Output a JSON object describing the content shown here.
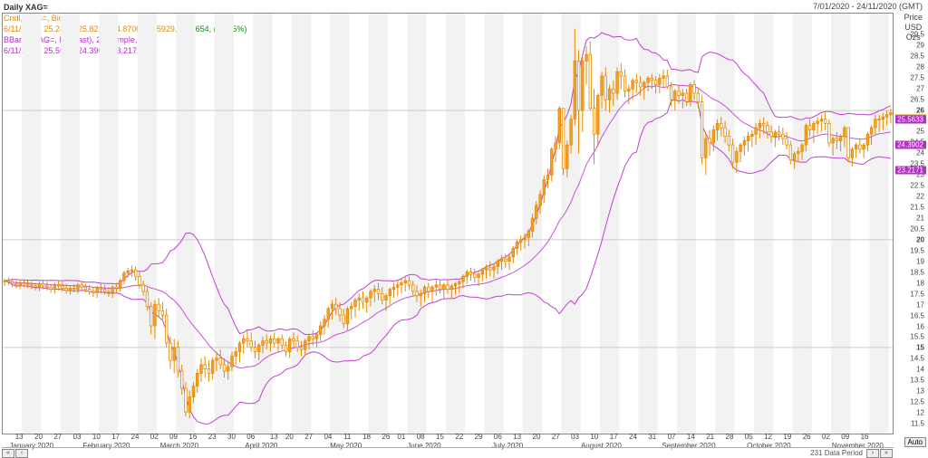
{
  "title": "Daily XAG=",
  "date_range": "7/01/2020 - 24/11/2020 (GMT)",
  "legend": {
    "candle": {
      "text": "Cndl, XAG=, Bid",
      "color": "#e58a00"
    },
    "candle_vals": {
      "text": "6/11/2020, 25.2400, 25.8211, 24.8700, 25.5929, +0.2654, (+1.05%)",
      "color": "#e58a00",
      "change_color_pos": "#0a8a0a"
    },
    "bband": {
      "text": "BBand, XAG=, Bid(Last), 20, Simple, 2.0",
      "color": "#b030c0"
    },
    "bband_vals": {
      "text": "6/11/2020, 25.5633, 24.3902, 23.2171",
      "color": "#b030c0"
    }
  },
  "y_axis": {
    "title_lines": [
      "Price",
      "USD",
      "Ozs"
    ],
    "min": 11,
    "max": 30.5,
    "ticks_major": [
      15,
      20,
      26
    ],
    "ticks_minor": [
      11.5,
      12,
      12.5,
      13,
      13.5,
      14,
      14.5,
      15.5,
      16,
      16.5,
      17,
      17.5,
      18,
      18.5,
      19,
      19.5,
      20.5,
      21,
      21.5,
      22,
      22.5,
      23,
      23.5,
      24,
      24.5,
      25,
      25.5,
      26.5,
      27,
      27.5,
      28,
      28.5,
      29,
      29.5
    ],
    "bold_ticks": [
      15,
      20,
      26
    ]
  },
  "markers": [
    {
      "value": 25.5929,
      "label": "25.5929",
      "bg": "#e58a00"
    },
    {
      "value": 25.5633,
      "label": "25.5633",
      "bg": "#b030c0"
    },
    {
      "value": 24.3902,
      "label": "24.3902",
      "bg": "#b030c0"
    },
    {
      "value": 23.2171,
      "label": "23.2171",
      "bg": "#b030c0"
    }
  ],
  "auto_label": "Auto",
  "nav": {
    "rewind": "«",
    "back": "‹",
    "status": "231 Data Period",
    "fwd": "›",
    "ffwd": "»"
  },
  "x_axis": {
    "start_index": 0,
    "count": 231,
    "months": [
      {
        "label": "January 2020",
        "day_start": 0
      },
      {
        "label": "February 2020",
        "day_start": 19
      },
      {
        "label": "March 2020",
        "day_start": 39
      },
      {
        "label": "April 2020",
        "day_start": 61
      },
      {
        "label": "May 2020",
        "day_start": 83
      },
      {
        "label": "June 2020",
        "day_start": 103
      },
      {
        "label": "July 2020",
        "day_start": 125
      },
      {
        "label": "August 2020",
        "day_start": 148
      },
      {
        "label": "September 2020",
        "day_start": 169
      },
      {
        "label": "October 2020",
        "day_start": 191
      },
      {
        "label": "November 2020",
        "day_start": 213
      }
    ],
    "ticks": [
      {
        "idx": 4,
        "label": "13"
      },
      {
        "idx": 9,
        "label": "20"
      },
      {
        "idx": 14,
        "label": "27"
      },
      {
        "idx": 19,
        "label": "03"
      },
      {
        "idx": 24,
        "label": "10"
      },
      {
        "idx": 29,
        "label": "17"
      },
      {
        "idx": 34,
        "label": "24"
      },
      {
        "idx": 39,
        "label": "02"
      },
      {
        "idx": 44,
        "label": "09"
      },
      {
        "idx": 49,
        "label": "16"
      },
      {
        "idx": 54,
        "label": "23"
      },
      {
        "idx": 59,
        "label": "30"
      },
      {
        "idx": 64,
        "label": "06"
      },
      {
        "idx": 70,
        "label": "13"
      },
      {
        "idx": 74,
        "label": "20"
      },
      {
        "idx": 79,
        "label": "27"
      },
      {
        "idx": 84,
        "label": "04"
      },
      {
        "idx": 89,
        "label": "11"
      },
      {
        "idx": 94,
        "label": "18"
      },
      {
        "idx": 99,
        "label": "26"
      },
      {
        "idx": 103,
        "label": "01"
      },
      {
        "idx": 108,
        "label": "08"
      },
      {
        "idx": 113,
        "label": "15"
      },
      {
        "idx": 118,
        "label": "22"
      },
      {
        "idx": 123,
        "label": "29"
      },
      {
        "idx": 128,
        "label": "06"
      },
      {
        "idx": 133,
        "label": "13"
      },
      {
        "idx": 138,
        "label": "20"
      },
      {
        "idx": 143,
        "label": "27"
      },
      {
        "idx": 148,
        "label": "03"
      },
      {
        "idx": 153,
        "label": "10"
      },
      {
        "idx": 158,
        "label": "17"
      },
      {
        "idx": 163,
        "label": "24"
      },
      {
        "idx": 168,
        "label": "31"
      },
      {
        "idx": 173,
        "label": "07"
      },
      {
        "idx": 178,
        "label": "14"
      },
      {
        "idx": 183,
        "label": "21"
      },
      {
        "idx": 188,
        "label": "28"
      },
      {
        "idx": 193,
        "label": "05"
      },
      {
        "idx": 198,
        "label": "12"
      },
      {
        "idx": 203,
        "label": "19"
      },
      {
        "idx": 208,
        "label": "26"
      },
      {
        "idx": 213,
        "label": "02"
      },
      {
        "idx": 218,
        "label": "09"
      },
      {
        "idx": 223,
        "label": "16"
      }
    ]
  },
  "style": {
    "candle_up": "#f2a02a",
    "candle_down": "#f2a02a",
    "candle_wick": "#e58a00",
    "candle_fill_down": "#ffffff",
    "bband_color": "#c040d0",
    "bband_mid_color": "#c040d0",
    "stripe_color": "#f2f2f2",
    "grid_major": "#cccccc",
    "background": "#ffffff",
    "candle_width": 0.6
  },
  "candles": [
    [
      18.05,
      18.2,
      17.85,
      18.1
    ],
    [
      18.1,
      18.25,
      17.9,
      18.05
    ],
    [
      18.05,
      18.2,
      17.8,
      17.95
    ],
    [
      17.95,
      18.1,
      17.75,
      17.9
    ],
    [
      17.9,
      18.1,
      17.7,
      18.0
    ],
    [
      18.0,
      18.15,
      17.8,
      17.95
    ],
    [
      17.95,
      18.1,
      17.75,
      17.9
    ],
    [
      17.9,
      18.05,
      17.7,
      17.85
    ],
    [
      17.85,
      18.0,
      17.65,
      17.8
    ],
    [
      17.8,
      18.05,
      17.6,
      17.95
    ],
    [
      17.95,
      18.1,
      17.7,
      17.85
    ],
    [
      17.85,
      18.05,
      17.65,
      17.8
    ],
    [
      17.8,
      17.95,
      17.55,
      17.7
    ],
    [
      17.7,
      18.0,
      17.5,
      17.9
    ],
    [
      17.9,
      18.1,
      17.65,
      17.85
    ],
    [
      17.85,
      18.05,
      17.6,
      17.75
    ],
    [
      17.75,
      17.95,
      17.5,
      17.65
    ],
    [
      17.65,
      17.85,
      17.45,
      17.75
    ],
    [
      17.75,
      17.95,
      17.55,
      17.7
    ],
    [
      17.7,
      18.0,
      17.5,
      17.9
    ],
    [
      17.9,
      18.05,
      17.65,
      17.8
    ],
    [
      17.8,
      17.95,
      17.55,
      17.7
    ],
    [
      17.7,
      17.9,
      17.45,
      17.6
    ],
    [
      17.6,
      17.8,
      17.35,
      17.55
    ],
    [
      17.55,
      17.85,
      17.3,
      17.75
    ],
    [
      17.75,
      17.95,
      17.5,
      17.7
    ],
    [
      17.7,
      17.9,
      17.45,
      17.6
    ],
    [
      17.6,
      17.8,
      17.35,
      17.55
    ],
    [
      17.55,
      17.9,
      17.3,
      17.8
    ],
    [
      17.8,
      18.0,
      17.55,
      17.75
    ],
    [
      17.75,
      18.2,
      17.6,
      18.1
    ],
    [
      18.1,
      18.55,
      17.95,
      18.45
    ],
    [
      18.45,
      18.7,
      18.25,
      18.55
    ],
    [
      18.55,
      18.8,
      18.3,
      18.6
    ],
    [
      18.6,
      18.75,
      18.1,
      18.3
    ],
    [
      18.3,
      18.5,
      17.75,
      17.9
    ],
    [
      17.9,
      18.1,
      17.4,
      17.6
    ],
    [
      17.6,
      17.8,
      16.7,
      16.9
    ],
    [
      16.9,
      17.1,
      15.6,
      16.0
    ],
    [
      16.0,
      17.2,
      15.4,
      17.0
    ],
    [
      17.0,
      17.3,
      16.4,
      16.7
    ],
    [
      16.7,
      17.1,
      16.2,
      16.5
    ],
    [
      16.5,
      16.8,
      15.0,
      15.2
    ],
    [
      15.2,
      15.5,
      14.0,
      14.4
    ],
    [
      14.4,
      15.4,
      13.8,
      15.0
    ],
    [
      15.0,
      15.3,
      13.6,
      13.9
    ],
    [
      13.9,
      14.2,
      12.8,
      13.1
    ],
    [
      13.1,
      13.4,
      11.8,
      12.0
    ],
    [
      12.0,
      13.0,
      11.7,
      12.7
    ],
    [
      12.7,
      13.4,
      12.4,
      13.2
    ],
    [
      13.2,
      14.0,
      12.9,
      13.8
    ],
    [
      13.8,
      14.5,
      13.4,
      14.2
    ],
    [
      14.2,
      14.6,
      13.6,
      14.0
    ],
    [
      14.0,
      14.4,
      13.4,
      13.8
    ],
    [
      13.8,
      14.55,
      13.5,
      14.4
    ],
    [
      14.4,
      14.8,
      13.9,
      14.5
    ],
    [
      14.5,
      14.9,
      14.0,
      14.2
    ],
    [
      14.2,
      14.5,
      13.6,
      13.9
    ],
    [
      13.9,
      14.3,
      13.5,
      14.1
    ],
    [
      14.1,
      14.8,
      13.9,
      14.6
    ],
    [
      14.6,
      15.0,
      14.2,
      14.8
    ],
    [
      14.8,
      15.3,
      14.3,
      15.2
    ],
    [
      15.2,
      15.6,
      14.7,
      15.4
    ],
    [
      15.4,
      15.8,
      15.0,
      15.3
    ],
    [
      15.3,
      15.7,
      14.8,
      15.0
    ],
    [
      15.0,
      15.3,
      14.5,
      14.8
    ],
    [
      14.8,
      15.2,
      14.4,
      15.1
    ],
    [
      15.1,
      15.5,
      14.7,
      15.3
    ],
    [
      15.3,
      15.6,
      14.9,
      15.2
    ],
    [
      15.2,
      15.55,
      14.8,
      15.4
    ],
    [
      15.4,
      15.7,
      15.0,
      15.2
    ],
    [
      15.2,
      15.5,
      14.8,
      15.4
    ],
    [
      15.4,
      15.6,
      14.9,
      15.1
    ],
    [
      15.1,
      15.3,
      14.6,
      14.8
    ],
    [
      14.8,
      15.5,
      14.5,
      15.4
    ],
    [
      15.4,
      15.7,
      15.0,
      15.3
    ],
    [
      15.3,
      15.55,
      14.8,
      15.0
    ],
    [
      15.0,
      15.3,
      14.6,
      14.9
    ],
    [
      14.9,
      15.4,
      14.6,
      15.3
    ],
    [
      15.3,
      15.6,
      14.9,
      15.5
    ],
    [
      15.5,
      15.8,
      15.1,
      15.4
    ],
    [
      15.4,
      15.7,
      15.0,
      15.6
    ],
    [
      15.6,
      16.2,
      15.3,
      16.0
    ],
    [
      16.0,
      16.5,
      15.6,
      16.3
    ],
    [
      16.3,
      16.9,
      15.9,
      16.8
    ],
    [
      16.8,
      17.2,
      16.3,
      17.0
    ],
    [
      17.0,
      17.3,
      16.5,
      16.8
    ],
    [
      16.8,
      17.1,
      16.2,
      16.5
    ],
    [
      16.5,
      16.8,
      15.9,
      16.1
    ],
    [
      16.1,
      16.9,
      15.8,
      16.8
    ],
    [
      16.8,
      17.1,
      16.3,
      16.9
    ],
    [
      16.9,
      17.3,
      16.4,
      17.2
    ],
    [
      17.2,
      17.5,
      16.7,
      17.3
    ],
    [
      17.3,
      17.6,
      16.8,
      17.1
    ],
    [
      17.1,
      17.4,
      16.6,
      17.3
    ],
    [
      17.3,
      17.7,
      16.9,
      17.6
    ],
    [
      17.6,
      17.9,
      17.1,
      17.7
    ],
    [
      17.7,
      18.0,
      17.2,
      17.5
    ],
    [
      17.5,
      17.8,
      17.0,
      17.2
    ],
    [
      17.2,
      17.5,
      16.7,
      17.4
    ],
    [
      17.4,
      17.8,
      17.0,
      17.7
    ],
    [
      17.7,
      18.0,
      17.3,
      17.8
    ],
    [
      17.8,
      18.1,
      17.4,
      17.9
    ],
    [
      17.9,
      18.2,
      17.5,
      18.0
    ],
    [
      18.0,
      18.3,
      17.6,
      18.1
    ],
    [
      18.1,
      18.3,
      17.7,
      17.9
    ],
    [
      17.9,
      18.1,
      17.4,
      17.6
    ],
    [
      17.6,
      17.9,
      17.1,
      17.4
    ],
    [
      17.4,
      17.7,
      16.9,
      17.5
    ],
    [
      17.5,
      17.9,
      17.1,
      17.8
    ],
    [
      17.8,
      18.0,
      17.3,
      17.6
    ],
    [
      17.6,
      17.9,
      17.1,
      17.8
    ],
    [
      17.8,
      18.1,
      17.4,
      17.9
    ],
    [
      17.9,
      18.1,
      17.5,
      17.7
    ],
    [
      17.7,
      18.0,
      17.3,
      17.9
    ],
    [
      17.9,
      18.1,
      17.5,
      17.7
    ],
    [
      17.7,
      17.95,
      17.3,
      17.85
    ],
    [
      17.85,
      18.05,
      17.45,
      17.95
    ],
    [
      17.95,
      18.15,
      17.55,
      18.05
    ],
    [
      18.05,
      18.4,
      17.75,
      18.3
    ],
    [
      18.3,
      18.6,
      17.95,
      18.5
    ],
    [
      18.5,
      18.7,
      18.1,
      18.4
    ],
    [
      18.4,
      18.65,
      18.0,
      18.25
    ],
    [
      18.25,
      18.5,
      17.85,
      18.4
    ],
    [
      18.4,
      18.7,
      18.05,
      18.6
    ],
    [
      18.6,
      18.85,
      18.2,
      18.7
    ],
    [
      18.7,
      19.0,
      18.3,
      18.6
    ],
    [
      18.6,
      18.9,
      18.2,
      18.75
    ],
    [
      18.75,
      19.1,
      18.4,
      19.0
    ],
    [
      19.0,
      19.3,
      18.6,
      19.1
    ],
    [
      19.1,
      19.35,
      18.7,
      19.0
    ],
    [
      19.0,
      19.3,
      18.6,
      19.2
    ],
    [
      19.2,
      19.7,
      18.9,
      19.6
    ],
    [
      19.6,
      20.0,
      19.3,
      19.9
    ],
    [
      19.9,
      20.2,
      19.5,
      20.0
    ],
    [
      20.0,
      20.3,
      19.6,
      20.1
    ],
    [
      20.1,
      20.5,
      19.7,
      20.4
    ],
    [
      20.4,
      21.2,
      20.1,
      21.0
    ],
    [
      21.0,
      21.8,
      20.7,
      21.6
    ],
    [
      21.6,
      22.3,
      21.2,
      22.1
    ],
    [
      22.1,
      23.0,
      21.7,
      22.8
    ],
    [
      22.8,
      23.3,
      22.4,
      23.0
    ],
    [
      23.0,
      24.3,
      22.7,
      24.2
    ],
    [
      24.2,
      24.8,
      23.6,
      24.5
    ],
    [
      24.5,
      26.2,
      24.2,
      26.1
    ],
    [
      26.1,
      24.9,
      23.0,
      23.3
    ],
    [
      23.3,
      24.6,
      22.9,
      24.4
    ],
    [
      24.4,
      25.8,
      24.0,
      25.6
    ],
    [
      25.6,
      29.8,
      25.3,
      28.3
    ],
    [
      28.3,
      28.8,
      24.0,
      26.0
    ],
    [
      26.0,
      28.5,
      25.0,
      28.3
    ],
    [
      28.3,
      29.0,
      27.2,
      28.6
    ],
    [
      28.6,
      29.2,
      26.0,
      26.1
    ],
    [
      26.1,
      27.0,
      23.5,
      24.9
    ],
    [
      24.9,
      26.8,
      24.3,
      26.7
    ],
    [
      26.7,
      27.8,
      26.1,
      27.6
    ],
    [
      27.6,
      28.0,
      26.0,
      26.5
    ],
    [
      26.5,
      27.2,
      25.9,
      27.0
    ],
    [
      27.0,
      27.4,
      26.2,
      26.8
    ],
    [
      26.8,
      28.0,
      26.5,
      27.8
    ],
    [
      27.8,
      28.2,
      27.0,
      27.6
    ],
    [
      27.6,
      27.9,
      26.6,
      26.9
    ],
    [
      26.9,
      27.2,
      26.3,
      27.0
    ],
    [
      27.0,
      27.5,
      26.5,
      27.4
    ],
    [
      27.4,
      27.7,
      26.8,
      27.3
    ],
    [
      27.3,
      27.6,
      26.7,
      27.1
    ],
    [
      27.1,
      27.4,
      26.5,
      27.3
    ],
    [
      27.3,
      27.6,
      26.9,
      27.5
    ],
    [
      27.5,
      27.7,
      27.0,
      27.4
    ],
    [
      27.4,
      27.6,
      26.8,
      27.2
    ],
    [
      27.2,
      27.7,
      26.8,
      27.5
    ],
    [
      27.5,
      27.9,
      27.1,
      27.6
    ],
    [
      27.6,
      27.9,
      27.0,
      27.1
    ],
    [
      27.1,
      27.3,
      26.2,
      26.5
    ],
    [
      26.5,
      27.0,
      26.0,
      26.9
    ],
    [
      26.9,
      27.2,
      26.3,
      26.7
    ],
    [
      26.7,
      27.0,
      26.1,
      26.8
    ],
    [
      26.8,
      27.0,
      26.2,
      26.4
    ],
    [
      26.4,
      27.3,
      26.2,
      27.2
    ],
    [
      27.2,
      27.4,
      26.5,
      26.8
    ],
    [
      26.8,
      27.0,
      26.1,
      26.4
    ],
    [
      26.4,
      26.7,
      23.5,
      23.8
    ],
    [
      23.8,
      25.0,
      23.0,
      24.7
    ],
    [
      24.7,
      25.1,
      23.9,
      24.5
    ],
    [
      24.5,
      25.3,
      24.1,
      25.1
    ],
    [
      25.1,
      25.6,
      24.6,
      25.4
    ],
    [
      25.4,
      25.7,
      24.8,
      25.2
    ],
    [
      25.2,
      25.5,
      24.5,
      24.8
    ],
    [
      24.8,
      25.1,
      24.1,
      24.4
    ],
    [
      24.4,
      24.7,
      23.3,
      23.6
    ],
    [
      23.6,
      24.3,
      23.1,
      24.1
    ],
    [
      24.1,
      24.5,
      23.6,
      24.4
    ],
    [
      24.4,
      24.8,
      23.9,
      24.6
    ],
    [
      24.6,
      25.0,
      24.1,
      24.8
    ],
    [
      24.8,
      25.1,
      24.3,
      24.9
    ],
    [
      24.9,
      25.4,
      24.4,
      25.2
    ],
    [
      25.2,
      25.6,
      24.7,
      25.4
    ],
    [
      25.4,
      25.7,
      24.9,
      25.3
    ],
    [
      25.3,
      25.5,
      24.7,
      25.0
    ],
    [
      25.0,
      25.3,
      24.5,
      24.8
    ],
    [
      24.8,
      25.1,
      24.3,
      25.0
    ],
    [
      25.0,
      25.3,
      24.6,
      24.9
    ],
    [
      24.9,
      25.2,
      24.4,
      24.7
    ],
    [
      24.7,
      25.0,
      24.2,
      24.4
    ],
    [
      24.4,
      24.6,
      23.5,
      23.7
    ],
    [
      23.7,
      24.1,
      23.3,
      24.0
    ],
    [
      24.0,
      24.3,
      23.6,
      24.1
    ],
    [
      24.1,
      24.5,
      23.7,
      24.4
    ],
    [
      24.4,
      25.4,
      24.1,
      25.3
    ],
    [
      25.3,
      25.6,
      24.8,
      25.1
    ],
    [
      25.1,
      25.5,
      24.5,
      25.4
    ],
    [
      25.4,
      25.7,
      24.9,
      25.5
    ],
    [
      25.5,
      25.8,
      25.0,
      25.6
    ],
    [
      25.6,
      25.9,
      25.1,
      25.4
    ],
    [
      25.4,
      25.6,
      24.3,
      24.5
    ],
    [
      24.5,
      24.8,
      23.9,
      24.7
    ],
    [
      24.7,
      25.0,
      24.2,
      24.6
    ],
    [
      24.6,
      24.9,
      24.1,
      24.8
    ],
    [
      24.8,
      25.3,
      24.3,
      25.2
    ],
    [
      25.2,
      24.8,
      23.6,
      23.8
    ],
    [
      23.8,
      24.3,
      23.4,
      24.2
    ],
    [
      24.2,
      24.5,
      23.8,
      24.4
    ],
    [
      24.4,
      24.7,
      24.0,
      24.2
    ],
    [
      24.2,
      24.5,
      23.8,
      24.4
    ],
    [
      24.4,
      25.0,
      24.1,
      24.9
    ],
    [
      24.9,
      25.3,
      24.4,
      25.2
    ],
    [
      25.2,
      25.82,
      24.87,
      25.59
    ],
    [
      25.59,
      25.8,
      25.0,
      25.6
    ],
    [
      25.6,
      25.9,
      25.1,
      25.7
    ],
    [
      25.7,
      26.0,
      25.3,
      25.8
    ],
    [
      25.8,
      26.1,
      25.4,
      25.9
    ]
  ]
}
